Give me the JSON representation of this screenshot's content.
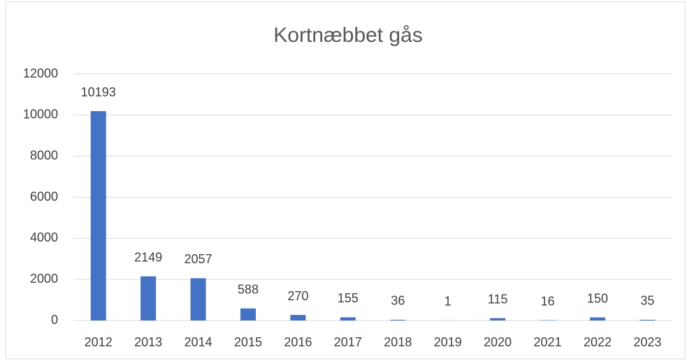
{
  "chart_data": {
    "type": "bar",
    "title": "Kortnæbbet gås",
    "categories": [
      "2012",
      "2013",
      "2014",
      "2015",
      "2016",
      "2017",
      "2018",
      "2019",
      "2020",
      "2021",
      "2022",
      "2023"
    ],
    "values": [
      10193,
      2149,
      2057,
      588,
      270,
      155,
      36,
      1,
      115,
      16,
      150,
      35
    ],
    "color": "#4472c4",
    "ylim": [
      0,
      12000
    ],
    "yticks": [
      0,
      2000,
      4000,
      6000,
      8000,
      10000,
      12000
    ],
    "grid": true
  }
}
